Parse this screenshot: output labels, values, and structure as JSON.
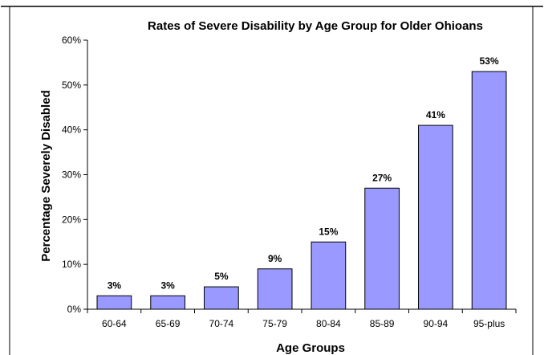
{
  "chart_data": {
    "type": "bar",
    "title": "Rates of Severe Disability by Age Group for  Older Ohioans",
    "xlabel": "Age Groups",
    "ylabel": "Percentage Severely Disabled",
    "categories": [
      "60-64",
      "65-69",
      "70-74",
      "75-79",
      "80-84",
      "85-89",
      "90-94",
      "95-plus"
    ],
    "values": [
      3,
      3,
      5,
      9,
      15,
      27,
      41,
      53
    ],
    "data_labels": [
      "3%",
      "3%",
      "5%",
      "9%",
      "15%",
      "27%",
      "41%",
      "53%"
    ],
    "y_ticks": [
      0,
      10,
      20,
      30,
      40,
      50,
      60
    ],
    "y_tick_labels": [
      "0%",
      "10%",
      "20%",
      "30%",
      "40%",
      "50%",
      "60%"
    ],
    "ylim": [
      0,
      60
    ],
    "grid": false,
    "legend": "none",
    "colors": {
      "bar_fill": "#9999ff",
      "bar_stroke": "#000000",
      "frame": "#000000",
      "background": "#ffffff"
    }
  }
}
